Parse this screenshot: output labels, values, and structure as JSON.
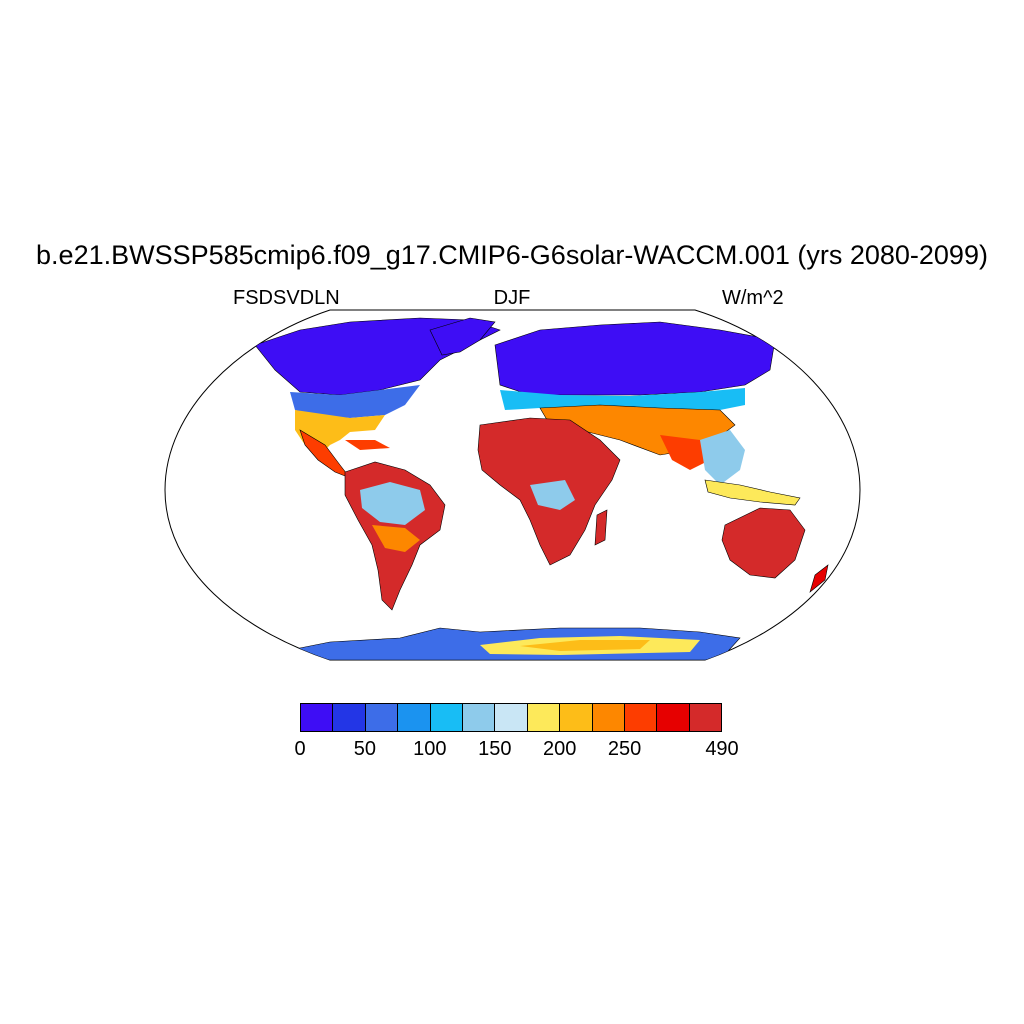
{
  "title": "b.e21.BWSSP585cmip6.f09_g17.CMIP6-G6solar-WACCM.001 (yrs 2080-2099)",
  "variable": "FSDSVDLN",
  "season": "DJF",
  "units": "W/m^2",
  "colorbar": {
    "colors": [
      "#3e0df5",
      "#2336e6",
      "#3d6de8",
      "#1b93f0",
      "#18bdf5",
      "#8ecbeb",
      "#c9e6f5",
      "#fde95a",
      "#fdbd18",
      "#fd8700",
      "#fd3d00",
      "#e60000",
      "#d42a2a"
    ],
    "tick_labels": [
      "0",
      "50",
      "100",
      "150",
      "200",
      "250",
      "490"
    ]
  },
  "colors": {
    "ocean": "#ffffff",
    "coastline": "#000000"
  }
}
